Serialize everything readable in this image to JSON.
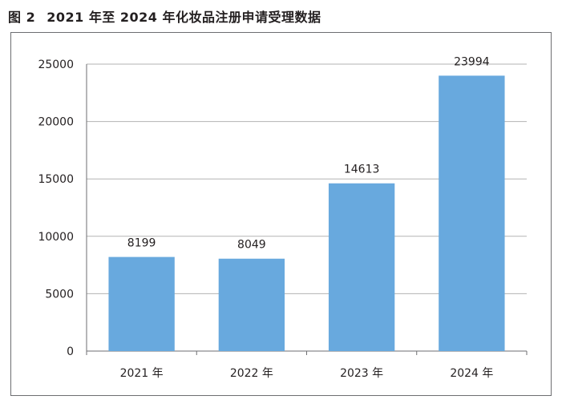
{
  "figure": {
    "number": "图 2",
    "title": "2021 年至 2024 年化妆品注册申请受理数据"
  },
  "chart_data": {
    "type": "bar",
    "title": "",
    "xlabel": "",
    "ylabel": "",
    "categories": [
      "2021 年",
      "2022 年",
      "2023 年",
      "2024 年"
    ],
    "values": [
      8199,
      8049,
      14613,
      23994
    ],
    "data_labels": [
      "8199",
      "8049",
      "14613",
      "23994"
    ],
    "ylim": [
      0,
      25000
    ],
    "yticks": [
      0,
      5000,
      10000,
      15000,
      20000,
      25000
    ],
    "ytick_labels": [
      "0",
      "5000",
      "10000",
      "15000",
      "20000",
      "25000"
    ],
    "grid": true,
    "legend": "none",
    "colors": {
      "bar": "#68a9de",
      "grid": "#b3b3b3",
      "axis": "#6d6e71"
    }
  }
}
